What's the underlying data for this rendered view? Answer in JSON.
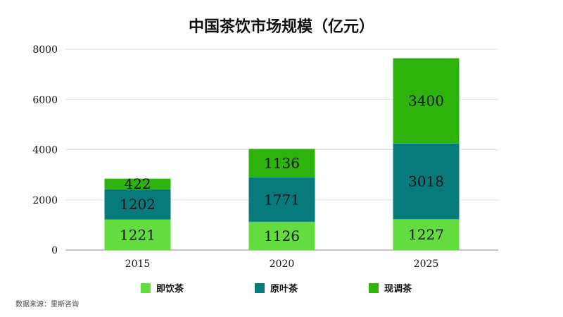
{
  "chart_data": {
    "type": "bar",
    "stacked": true,
    "title": "中国茶饮市场规模（亿元）",
    "categories": [
      "2015",
      "2020",
      "2025"
    ],
    "series": [
      {
        "name": "即饮茶",
        "color": "#62dc3e",
        "values": [
          1221,
          1126,
          1227
        ]
      },
      {
        "name": "原叶茶",
        "color": "#077b7b",
        "values": [
          1202,
          1771,
          3018
        ]
      },
      {
        "name": "现调茶",
        "color": "#2eb30c",
        "values": [
          422,
          1136,
          3400
        ]
      }
    ],
    "ylim": [
      0,
      8000
    ],
    "yticks": [
      0,
      2000,
      4000,
      6000,
      8000
    ],
    "grid": true,
    "legend": "bottom",
    "xlabel": "",
    "ylabel": ""
  },
  "source": "数据来源：里斯咨询"
}
